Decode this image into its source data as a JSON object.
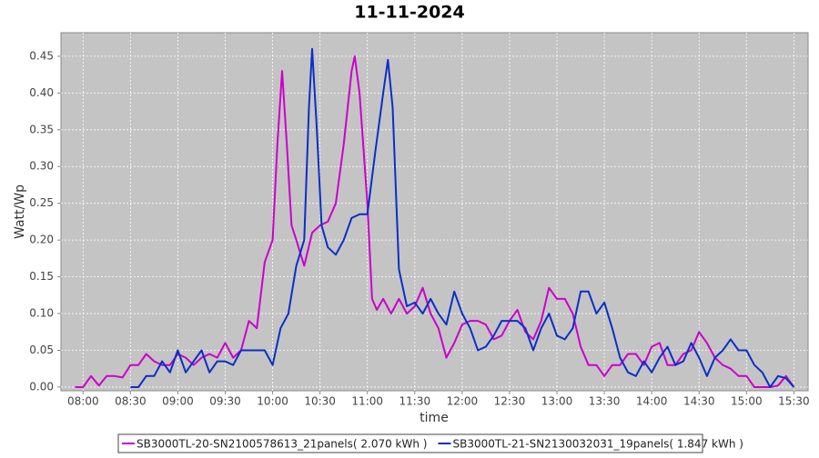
{
  "chart_data": {
    "type": "line",
    "title": "11-11-2024",
    "x_label": "time",
    "y_label": "Watt/Wp",
    "xlim": [
      466,
      939
    ],
    "ylim": [
      -0.005,
      0.482
    ],
    "grid": true,
    "legend": "bottom",
    "xticks": [
      {
        "value": 480,
        "label": "08:00"
      },
      {
        "value": 510,
        "label": "08:30"
      },
      {
        "value": 540,
        "label": "09:00"
      },
      {
        "value": 570,
        "label": "09:30"
      },
      {
        "value": 600,
        "label": "10:00"
      },
      {
        "value": 630,
        "label": "10:30"
      },
      {
        "value": 660,
        "label": "11:00"
      },
      {
        "value": 690,
        "label": "11:30"
      },
      {
        "value": 720,
        "label": "12:00"
      },
      {
        "value": 750,
        "label": "12:30"
      },
      {
        "value": 780,
        "label": "13:00"
      },
      {
        "value": 810,
        "label": "13:30"
      },
      {
        "value": 840,
        "label": "14:00"
      },
      {
        "value": 870,
        "label": "14:30"
      },
      {
        "value": 900,
        "label": "15:00"
      },
      {
        "value": 930,
        "label": "15:30"
      }
    ],
    "yticks": [
      {
        "value": 0,
        "label": "0.00"
      },
      {
        "value": 0.05,
        "label": "0.05"
      },
      {
        "value": 0.1,
        "label": "0.10"
      },
      {
        "value": 0.15,
        "label": "0.15"
      },
      {
        "value": 0.2,
        "label": "0.20"
      },
      {
        "value": 0.25,
        "label": "0.25"
      },
      {
        "value": 0.3,
        "label": "0.30"
      },
      {
        "value": 0.35,
        "label": "0.35"
      },
      {
        "value": 0.4,
        "label": "0.40"
      },
      {
        "value": 0.45,
        "label": "0.45"
      }
    ],
    "series": [
      {
        "name": "SB3000TL-20-SN2100578613_21panels( 2.070 kWh )",
        "color": "#cc00cc",
        "x": [
          475,
          480,
          485,
          490,
          495,
          500,
          505,
          510,
          515,
          520,
          525,
          530,
          535,
          540,
          545,
          550,
          555,
          560,
          565,
          570,
          575,
          580,
          585,
          590,
          595,
          600,
          603,
          606,
          609,
          612,
          615,
          620,
          625,
          630,
          635,
          640,
          645,
          650,
          652,
          655,
          660,
          663,
          666,
          670,
          675,
          680,
          685,
          690,
          695,
          700,
          705,
          710,
          715,
          720,
          725,
          730,
          735,
          740,
          745,
          750,
          755,
          760,
          765,
          770,
          775,
          780,
          785,
          790,
          795,
          800,
          805,
          810,
          815,
          820,
          825,
          830,
          835,
          840,
          845,
          850,
          855,
          860,
          865,
          870,
          875,
          880,
          885,
          890,
          895,
          900,
          905,
          910,
          915,
          920,
          925,
          930
        ],
        "values": [
          0,
          0,
          0.015,
          0.002,
          0.015,
          0.015,
          0.013,
          0.03,
          0.03,
          0.045,
          0.035,
          0.03,
          0.03,
          0.045,
          0.04,
          0.03,
          0.04,
          0.045,
          0.04,
          0.06,
          0.04,
          0.05,
          0.09,
          0.08,
          0.17,
          0.2,
          0.33,
          0.43,
          0.33,
          0.22,
          0.2,
          0.165,
          0.21,
          0.22,
          0.225,
          0.25,
          0.33,
          0.43,
          0.45,
          0.4,
          0.25,
          0.12,
          0.105,
          0.12,
          0.1,
          0.12,
          0.1,
          0.11,
          0.135,
          0.1,
          0.08,
          0.04,
          0.06,
          0.085,
          0.09,
          0.09,
          0.085,
          0.065,
          0.07,
          0.09,
          0.105,
          0.075,
          0.065,
          0.09,
          0.135,
          0.12,
          0.12,
          0.1,
          0.055,
          0.03,
          0.03,
          0.015,
          0.03,
          0.03,
          0.045,
          0.045,
          0.03,
          0.055,
          0.06,
          0.03,
          0.03,
          0.045,
          0.05,
          0.075,
          0.06,
          0.04,
          0.03,
          0.025,
          0.015,
          0.015,
          0,
          0,
          0,
          0.002,
          0.015,
          0
        ]
      },
      {
        "name": "SB3000TL-21-SN2130032031_19panels( 1.847 kWh )",
        "color": "#0a2fc8",
        "x": [
          510,
          515,
          520,
          525,
          530,
          535,
          540,
          545,
          550,
          555,
          560,
          565,
          570,
          575,
          580,
          585,
          590,
          595,
          600,
          605,
          610,
          615,
          620,
          623,
          625,
          628,
          631,
          635,
          640,
          645,
          650,
          655,
          660,
          665,
          670,
          673,
          676,
          680,
          685,
          690,
          695,
          700,
          705,
          710,
          715,
          720,
          725,
          730,
          735,
          740,
          745,
          750,
          755,
          760,
          765,
          770,
          775,
          780,
          785,
          790,
          795,
          800,
          805,
          810,
          815,
          820,
          825,
          830,
          835,
          840,
          845,
          850,
          855,
          860,
          865,
          870,
          875,
          880,
          885,
          890,
          895,
          900,
          905,
          910,
          915,
          920,
          925,
          930
        ],
        "values": [
          0,
          0,
          0.015,
          0.015,
          0.035,
          0.02,
          0.05,
          0.02,
          0.035,
          0.05,
          0.02,
          0.035,
          0.035,
          0.03,
          0.05,
          0.05,
          0.05,
          0.05,
          0.03,
          0.08,
          0.1,
          0.165,
          0.2,
          0.38,
          0.46,
          0.35,
          0.22,
          0.19,
          0.18,
          0.2,
          0.23,
          0.235,
          0.235,
          0.32,
          0.4,
          0.445,
          0.38,
          0.16,
          0.11,
          0.115,
          0.1,
          0.12,
          0.1,
          0.085,
          0.13,
          0.1,
          0.08,
          0.05,
          0.055,
          0.07,
          0.09,
          0.09,
          0.09,
          0.08,
          0.05,
          0.08,
          0.1,
          0.07,
          0.065,
          0.08,
          0.13,
          0.13,
          0.1,
          0.115,
          0.08,
          0.04,
          0.02,
          0.015,
          0.035,
          0.02,
          0.04,
          0.055,
          0.03,
          0.035,
          0.06,
          0.04,
          0.015,
          0.04,
          0.05,
          0.065,
          0.05,
          0.05,
          0.03,
          0.02,
          0,
          0.015,
          0.012,
          0
        ]
      }
    ]
  }
}
